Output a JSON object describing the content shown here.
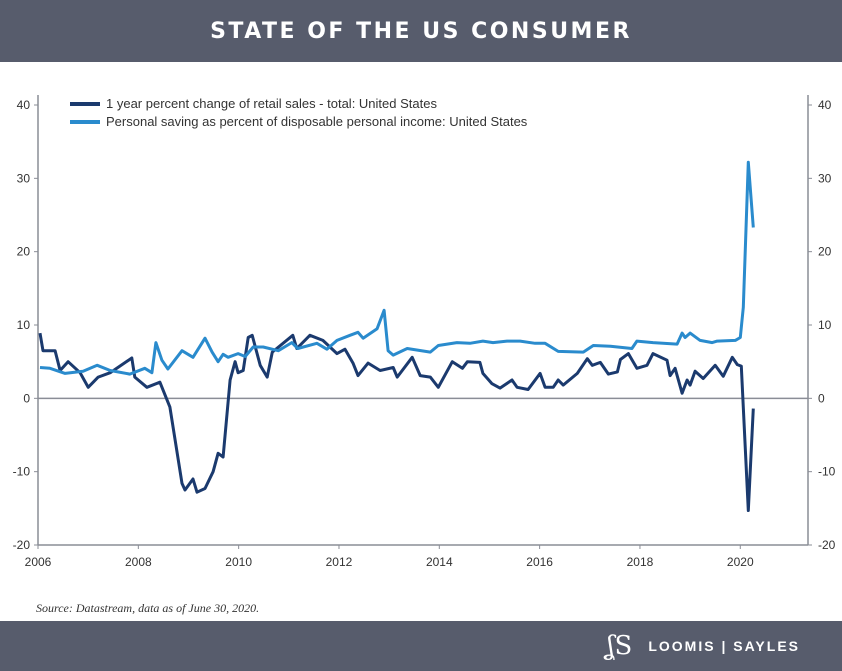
{
  "header": {
    "title": "STATE OF THE US CONSUMER"
  },
  "source": "Source: Datastream, data as of June 30, 2020.",
  "logo": {
    "mark": "LS",
    "text": "LOOMIS | SAYLES"
  },
  "chart_data": {
    "type": "line",
    "title": "",
    "xlabel": "",
    "ylabel": "",
    "xlim": [
      2006,
      2021.35
    ],
    "ylim": [
      -20,
      40
    ],
    "xticks": [
      "2006",
      "2008",
      "2010",
      "2012",
      "2014",
      "2016",
      "2018",
      "2020"
    ],
    "yticks_left": [
      "40",
      "30",
      "20",
      "10",
      "0",
      "-10",
      "-20"
    ],
    "yticks_right": [
      "40",
      "30",
      "20",
      "10",
      "0",
      "-10",
      "-20"
    ],
    "legend_position": "top-left",
    "grid": false,
    "series": [
      {
        "name": "1 year percent change of retail sales - total: United States",
        "color": "#1b3a6e",
        "x": [
          2006.04,
          2006.1,
          2006.34,
          2006.44,
          2006.6,
          2006.84,
          2007.0,
          2007.2,
          2007.44,
          2007.87,
          2007.93,
          2008.17,
          2008.43,
          2008.63,
          2008.87,
          2008.93,
          2009.09,
          2009.17,
          2009.33,
          2009.49,
          2009.59,
          2009.69,
          2009.83,
          2009.93,
          2009.99,
          2010.09,
          2010.19,
          2010.27,
          2010.43,
          2010.57,
          2010.67,
          2011.08,
          2011.16,
          2011.42,
          2011.68,
          2011.96,
          2012.12,
          2012.28,
          2012.38,
          2012.58,
          2012.82,
          2013.08,
          2013.16,
          2013.46,
          2013.62,
          2013.82,
          2013.98,
          2014.26,
          2014.46,
          2014.56,
          2014.81,
          2014.87,
          2015.05,
          2015.21,
          2015.45,
          2015.55,
          2015.77,
          2016.01,
          2016.11,
          2016.27,
          2016.37,
          2016.47,
          2016.75,
          2016.95,
          2017.05,
          2017.21,
          2017.37,
          2017.55,
          2017.61,
          2017.77,
          2017.94,
          2018.14,
          2018.26,
          2018.54,
          2018.6,
          2018.7,
          2018.84,
          2018.94,
          2019.0,
          2019.1,
          2019.26,
          2019.5,
          2019.66,
          2019.84,
          2019.94,
          2020.02,
          2020.16,
          2020.26
        ],
        "values": [
          8.9,
          6.5,
          6.5,
          3.8,
          5.0,
          3.5,
          1.5,
          2.9,
          3.5,
          5.5,
          2.9,
          1.5,
          2.2,
          -1.2,
          -11.6,
          -12.5,
          -11.0,
          -12.8,
          -12.3,
          -10.0,
          -7.5,
          -8.0,
          2.5,
          5.0,
          3.5,
          3.8,
          8.3,
          8.6,
          4.5,
          2.9,
          6.3,
          8.6,
          6.8,
          8.6,
          7.9,
          6.1,
          6.7,
          4.8,
          3.1,
          4.8,
          3.8,
          4.2,
          2.9,
          5.6,
          3.1,
          2.9,
          1.5,
          5.0,
          4.1,
          5.0,
          4.9,
          3.4,
          2.0,
          1.4,
          2.5,
          1.5,
          1.2,
          3.4,
          1.5,
          1.5,
          2.5,
          1.8,
          3.4,
          5.4,
          4.5,
          4.9,
          3.3,
          3.6,
          5.3,
          6.1,
          4.1,
          4.5,
          6.1,
          5.2,
          3.1,
          4.1,
          0.7,
          2.5,
          1.8,
          3.7,
          2.7,
          4.5,
          3.0,
          5.6,
          4.6,
          4.4,
          -15.3,
          -1.4
        ]
      },
      {
        "name": "Personal saving as percent of disposable personal income: United States",
        "color": "#2a8bcd",
        "x": [
          2006.04,
          2006.24,
          2006.54,
          2006.9,
          2007.18,
          2007.44,
          2007.83,
          2008.13,
          2008.27,
          2008.35,
          2008.47,
          2008.59,
          2008.87,
          2009.09,
          2009.33,
          2009.47,
          2009.59,
          2009.69,
          2009.79,
          2009.99,
          2010.13,
          2010.29,
          2010.49,
          2010.79,
          2011.06,
          2011.18,
          2011.56,
          2011.76,
          2011.96,
          2012.22,
          2012.38,
          2012.48,
          2012.76,
          2012.9,
          2012.98,
          2013.08,
          2013.36,
          2013.82,
          2013.98,
          2014.35,
          2014.61,
          2014.87,
          2015.07,
          2015.35,
          2015.61,
          2015.91,
          2016.11,
          2016.37,
          2016.87,
          2017.07,
          2017.41,
          2017.84,
          2017.94,
          2018.26,
          2018.74,
          2018.84,
          2018.9,
          2019.0,
          2019.2,
          2019.44,
          2019.54,
          2019.9,
          2020.0,
          2020.06,
          2020.16,
          2020.26
        ],
        "values": [
          4.2,
          4.1,
          3.4,
          3.7,
          4.5,
          3.8,
          3.3,
          4.1,
          3.5,
          7.6,
          5.2,
          4.0,
          6.5,
          5.6,
          8.2,
          6.3,
          5.0,
          6.0,
          5.6,
          6.1,
          5.7,
          7.0,
          7.0,
          6.5,
          7.6,
          6.8,
          7.5,
          6.7,
          7.9,
          8.6,
          9.0,
          8.2,
          9.5,
          12.0,
          6.5,
          5.9,
          6.8,
          6.3,
          7.2,
          7.6,
          7.5,
          7.8,
          7.6,
          7.8,
          7.8,
          7.5,
          7.5,
          6.4,
          6.3,
          7.2,
          7.1,
          6.8,
          7.8,
          7.6,
          7.4,
          8.9,
          8.3,
          8.9,
          7.9,
          7.6,
          7.8,
          7.9,
          8.3,
          12.4,
          32.2,
          23.3
        ]
      }
    ]
  }
}
